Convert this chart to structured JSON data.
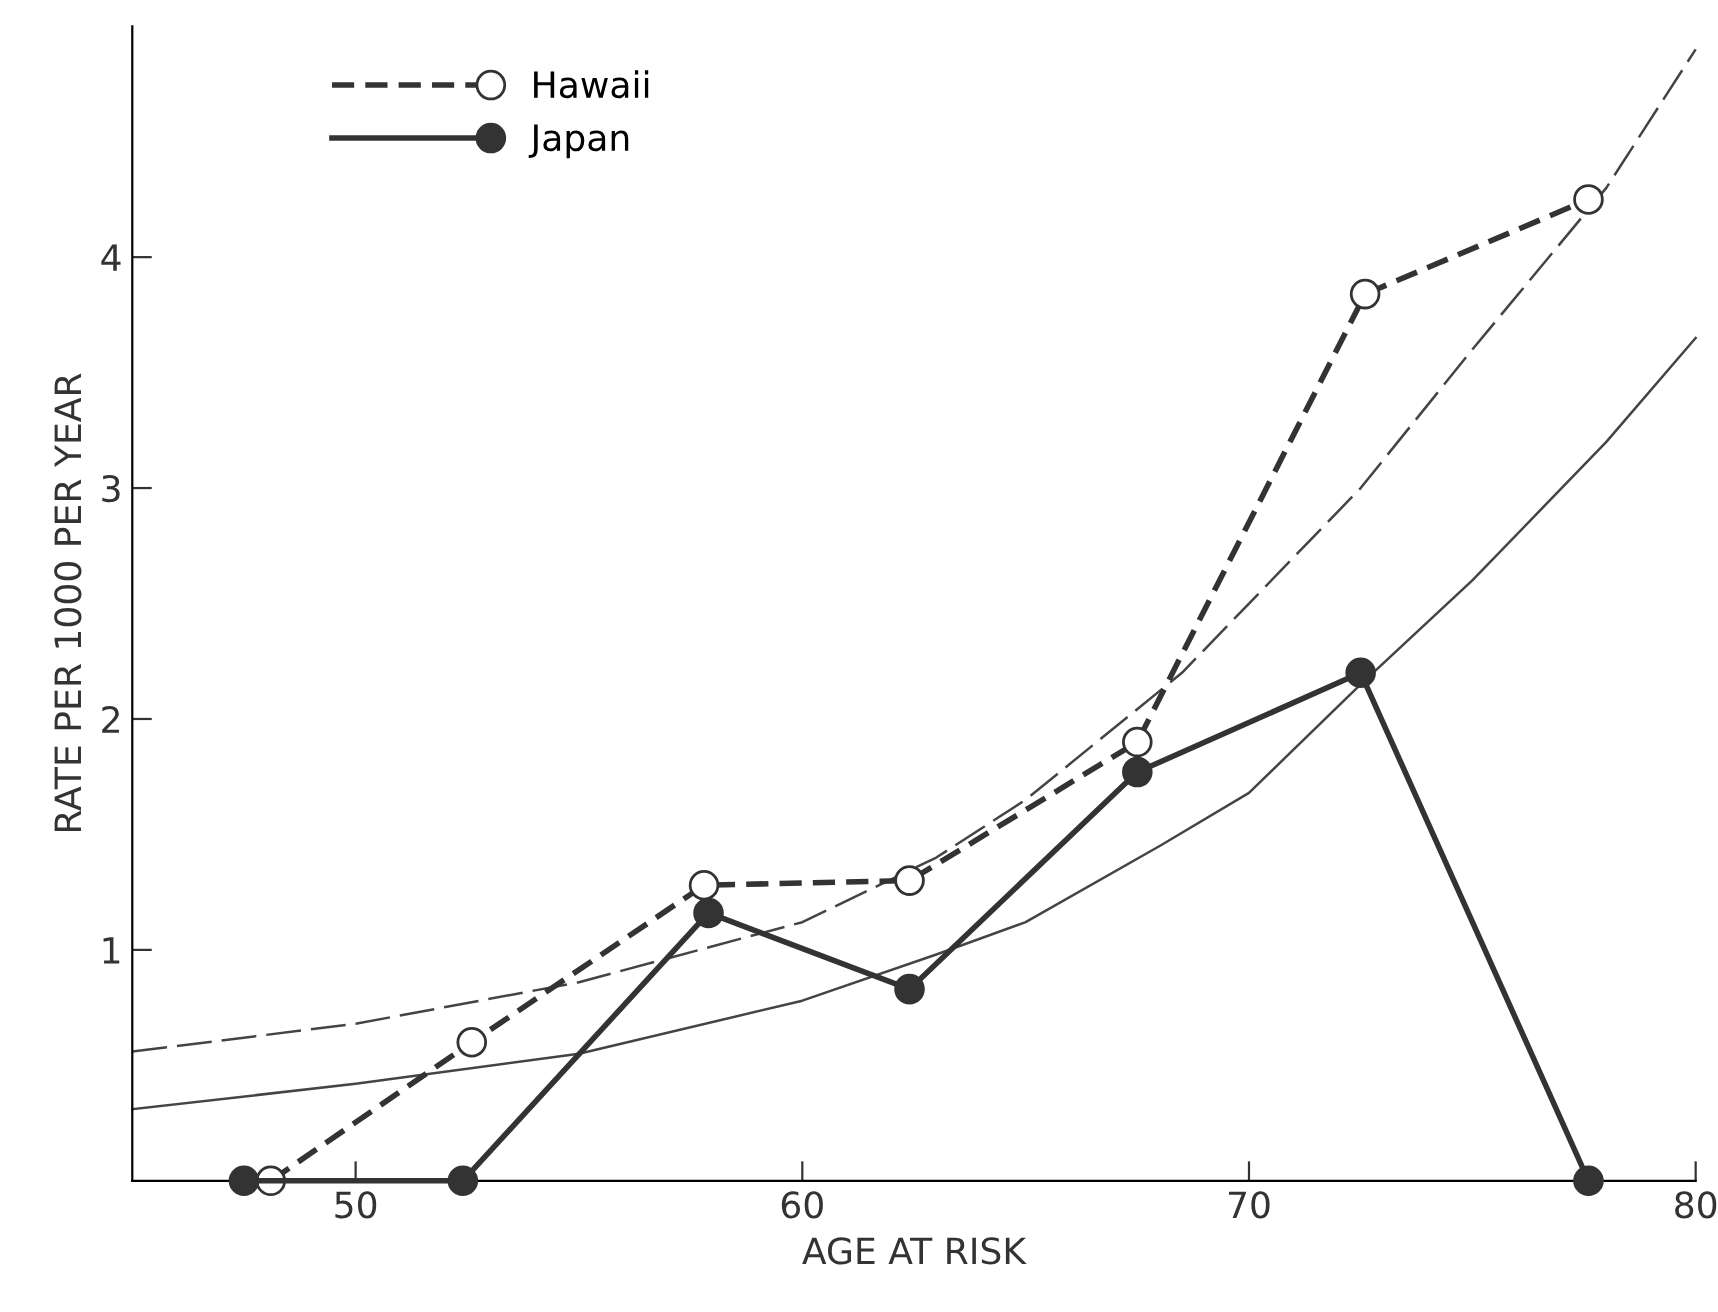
{
  "chart_data": {
    "type": "line",
    "xlabel": "AGE AT RISK",
    "ylabel": "RATE PER 1000 PER YEAR",
    "xlim": [
      45,
      80
    ],
    "ylim": [
      0,
      5.0
    ],
    "xticks": [
      50,
      60,
      70,
      80
    ],
    "yticks": [
      1,
      2,
      3,
      4
    ],
    "grid": false,
    "legend": "top left",
    "series": [
      {
        "name": "Hawaii",
        "color": "#333333",
        "marker": "circle",
        "line_style": "dashed",
        "x": [
          48.1,
          52.6,
          57.8,
          62.4,
          67.5,
          72.6,
          77.6
        ],
        "values": [
          0,
          0.6,
          1.28,
          1.3,
          1.9,
          3.84,
          4.25
        ]
      },
      {
        "name": "Japan",
        "color": "#333333",
        "marker": "circle",
        "line_style": "solid",
        "x": [
          47.5,
          52.4,
          57.9,
          62.4,
          67.5,
          72.5,
          77.6
        ],
        "values": [
          0,
          0,
          1.16,
          0.83,
          1.77,
          2.2,
          0
        ]
      },
      {
        "type": "line",
        "color": "#444444",
        "marker": "none",
        "line_style": "dashed",
        "x": [
          45,
          50,
          55,
          60,
          63,
          65,
          68.5,
          70,
          72.5,
          75,
          78,
          80
        ],
        "values": [
          0.56,
          0.68,
          0.86,
          1.12,
          1.4,
          1.65,
          2.2,
          2.5,
          3.0,
          3.6,
          4.3,
          4.9
        ]
      },
      {
        "type": "line",
        "color": "#444444",
        "marker": "none",
        "line_style": "solid",
        "x": [
          45,
          50,
          55,
          60,
          63,
          65,
          68,
          70,
          72.5,
          75,
          78,
          80
        ],
        "values": [
          0.31,
          0.42,
          0.55,
          0.78,
          0.98,
          1.12,
          1.45,
          1.68,
          2.15,
          2.6,
          3.2,
          3.65
        ]
      }
    ]
  }
}
